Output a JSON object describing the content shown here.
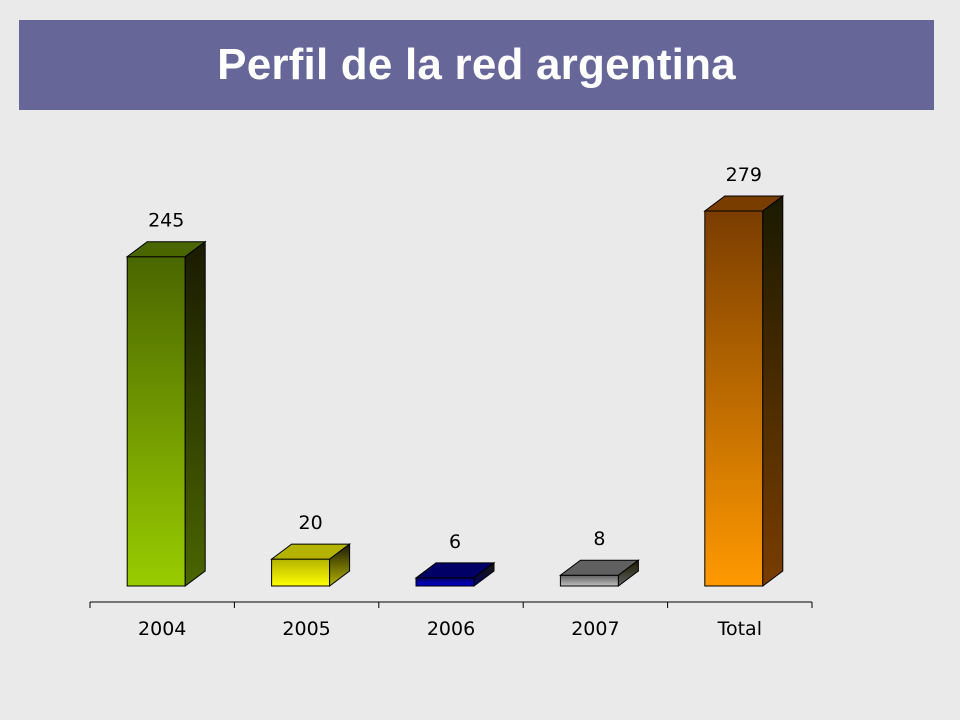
{
  "title": "Perfil de la red argentina",
  "chart_data": {
    "type": "bar",
    "title": "Perfil de la red argentina",
    "categories": [
      "2004",
      "2005",
      "2006",
      "2007",
      "Total"
    ],
    "values": [
      245,
      20,
      6,
      8,
      279
    ],
    "data_labels": [
      "245",
      "20",
      "6",
      "8",
      "279"
    ],
    "ylim": [
      0,
      279
    ],
    "grid": false,
    "legend": "none",
    "xlabel": "",
    "ylabel": "",
    "colors": [
      {
        "light": "#99cc00",
        "dark": "#4a6600"
      },
      {
        "light": "#ffff00",
        "dark": "#b3b300"
      },
      {
        "light": "#0000cc",
        "dark": "#000066"
      },
      {
        "light": "#bfbfbf",
        "dark": "#606060"
      },
      {
        "light": "#ff9900",
        "dark": "#7a3d00"
      }
    ]
  }
}
